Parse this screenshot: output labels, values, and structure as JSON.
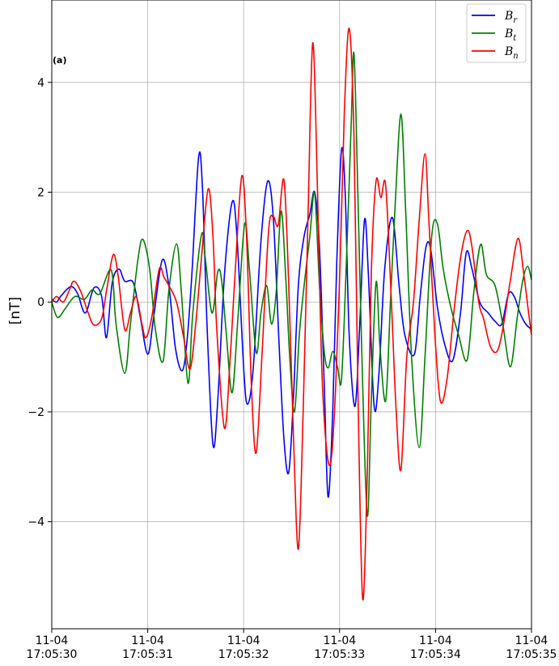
{
  "chart_data": {
    "type": "line",
    "panel_label": "(a)",
    "ylabel": "[nT]",
    "xlabel": "",
    "title": "",
    "xlim_seconds": [
      30,
      35
    ],
    "ylim": [
      -5.95,
      5.5
    ],
    "grid": true,
    "legend_placement": "top-right",
    "x_ticks": [
      {
        "value": 30,
        "date": "11-04",
        "time": "17:05:30"
      },
      {
        "value": 31,
        "date": "11-04",
        "time": "17:05:31"
      },
      {
        "value": 32,
        "date": "11-04",
        "time": "17:05:32"
      },
      {
        "value": 33,
        "date": "11-04",
        "time": "17:05:33"
      },
      {
        "value": 34,
        "date": "11-04",
        "time": "17:05:34"
      },
      {
        "value": 35,
        "date": "11-04",
        "time": "17:05:35"
      }
    ],
    "y_ticks": [
      {
        "value": 4,
        "label": "4"
      },
      {
        "value": 2,
        "label": "2"
      },
      {
        "value": 0,
        "label": "0"
      },
      {
        "value": -2,
        "label": "−2"
      },
      {
        "value": -4,
        "label": "−4"
      }
    ],
    "series": [
      {
        "name": "Br",
        "legend_base": "B",
        "legend_sub": "r",
        "color": "#0000ff",
        "points": [
          [
            30.0,
            0.05
          ],
          [
            30.05,
            0.0
          ],
          [
            30.1,
            0.12
          ],
          [
            30.2,
            0.28
          ],
          [
            30.27,
            0.15
          ],
          [
            30.35,
            -0.2
          ],
          [
            30.44,
            0.26
          ],
          [
            30.52,
            0.1
          ],
          [
            30.57,
            -0.65
          ],
          [
            30.63,
            0.35
          ],
          [
            30.7,
            0.6
          ],
          [
            30.76,
            0.38
          ],
          [
            30.85,
            0.35
          ],
          [
            30.92,
            -0.25
          ],
          [
            31.0,
            -0.95
          ],
          [
            31.06,
            -0.3
          ],
          [
            31.15,
            0.76
          ],
          [
            31.22,
            0.3
          ],
          [
            31.29,
            -0.85
          ],
          [
            31.36,
            -1.25
          ],
          [
            31.41,
            -0.7
          ],
          [
            31.46,
            0.5
          ],
          [
            31.53,
            2.63
          ],
          [
            31.57,
            2.1
          ],
          [
            31.62,
            -0.5
          ],
          [
            31.68,
            -2.6
          ],
          [
            31.73,
            -1.8
          ],
          [
            31.8,
            0.5
          ],
          [
            31.88,
            1.82
          ],
          [
            31.93,
            1.2
          ],
          [
            32.0,
            -1.2
          ],
          [
            32.04,
            -1.86
          ],
          [
            32.1,
            -1.2
          ],
          [
            32.18,
            1.1
          ],
          [
            32.25,
            2.2
          ],
          [
            32.31,
            1.5
          ],
          [
            32.37,
            -0.8
          ],
          [
            32.42,
            -2.5
          ],
          [
            32.47,
            -3.1
          ],
          [
            32.52,
            -1.7
          ],
          [
            32.57,
            0.3
          ],
          [
            32.63,
            1.2
          ],
          [
            32.69,
            1.6
          ],
          [
            32.74,
            2.0
          ],
          [
            32.79,
            1.0
          ],
          [
            32.84,
            -1.5
          ],
          [
            32.88,
            -3.55
          ],
          [
            32.93,
            -1.9
          ],
          [
            32.97,
            0.7
          ],
          [
            33.02,
            2.77
          ],
          [
            33.06,
            1.9
          ],
          [
            33.1,
            -0.6
          ],
          [
            33.16,
            -1.9
          ],
          [
            33.21,
            -0.4
          ],
          [
            33.26,
            1.5
          ],
          [
            33.3,
            0.5
          ],
          [
            33.36,
            -1.9
          ],
          [
            33.41,
            -1.3
          ],
          [
            33.47,
            0.6
          ],
          [
            33.55,
            1.54
          ],
          [
            33.62,
            0.3
          ],
          [
            33.68,
            -0.6
          ],
          [
            33.78,
            -0.95
          ],
          [
            33.84,
            0.1
          ],
          [
            33.9,
            1.0
          ],
          [
            33.95,
            0.95
          ],
          [
            34.02,
            -0.1
          ],
          [
            34.1,
            -0.8
          ],
          [
            34.18,
            -1.06
          ],
          [
            34.26,
            -0.2
          ],
          [
            34.32,
            0.9
          ],
          [
            34.38,
            0.6
          ],
          [
            34.46,
            0.0
          ],
          [
            34.55,
            -0.2
          ],
          [
            34.62,
            -0.35
          ],
          [
            34.69,
            -0.4
          ],
          [
            34.76,
            0.15
          ],
          [
            34.82,
            0.1
          ],
          [
            34.88,
            -0.2
          ],
          [
            34.94,
            -0.4
          ],
          [
            35.0,
            -0.5
          ]
        ]
      },
      {
        "name": "Bt",
        "legend_base": "B",
        "legend_sub": "t",
        "color": "#008000",
        "points": [
          [
            30.0,
            0.0
          ],
          [
            30.06,
            -0.28
          ],
          [
            30.14,
            -0.12
          ],
          [
            30.24,
            0.1
          ],
          [
            30.34,
            0.05
          ],
          [
            30.42,
            0.22
          ],
          [
            30.5,
            0.15
          ],
          [
            30.62,
            0.58
          ],
          [
            30.67,
            -0.4
          ],
          [
            30.76,
            -1.3
          ],
          [
            30.82,
            -0.4
          ],
          [
            30.9,
            0.8
          ],
          [
            30.95,
            1.14
          ],
          [
            31.02,
            0.6
          ],
          [
            31.08,
            -0.5
          ],
          [
            31.16,
            -1.08
          ],
          [
            31.22,
            0.2
          ],
          [
            31.3,
            1.06
          ],
          [
            31.35,
            0.2
          ],
          [
            31.42,
            -1.48
          ],
          [
            31.47,
            -0.2
          ],
          [
            31.56,
            1.22
          ],
          [
            31.6,
            0.8
          ],
          [
            31.67,
            -0.2
          ],
          [
            31.73,
            0.55
          ],
          [
            31.77,
            0.4
          ],
          [
            31.82,
            -0.6
          ],
          [
            31.88,
            -1.65
          ],
          [
            31.94,
            -0.3
          ],
          [
            32.01,
            1.42
          ],
          [
            32.06,
            0.6
          ],
          [
            32.13,
            -0.92
          ],
          [
            32.18,
            -0.2
          ],
          [
            32.24,
            0.3
          ],
          [
            32.29,
            -0.4
          ],
          [
            32.34,
            0.2
          ],
          [
            32.39,
            1.66
          ],
          [
            32.44,
            0.4
          ],
          [
            32.48,
            -1.0
          ],
          [
            32.53,
            -2.0
          ],
          [
            32.58,
            -0.6
          ],
          [
            32.63,
            0.3
          ],
          [
            32.69,
            1.2
          ],
          [
            32.74,
            1.98
          ],
          [
            32.79,
            0.3
          ],
          [
            32.84,
            -0.9
          ],
          [
            32.88,
            -1.2
          ],
          [
            32.93,
            -0.9
          ],
          [
            32.98,
            -1.2
          ],
          [
            33.02,
            -1.4
          ],
          [
            33.07,
            0.7
          ],
          [
            33.12,
            3.2
          ],
          [
            33.15,
            4.52
          ],
          [
            33.19,
            2.0
          ],
          [
            33.24,
            -1.5
          ],
          [
            33.29,
            -3.9
          ],
          [
            33.33,
            -1.8
          ],
          [
            33.38,
            0.36
          ],
          [
            33.42,
            -0.8
          ],
          [
            33.48,
            -1.8
          ],
          [
            33.53,
            0.0
          ],
          [
            33.58,
            1.8
          ],
          [
            33.64,
            3.42
          ],
          [
            33.69,
            1.6
          ],
          [
            33.75,
            -1.0
          ],
          [
            33.83,
            -2.65
          ],
          [
            33.89,
            -1.0
          ],
          [
            33.96,
            1.2
          ],
          [
            34.02,
            1.42
          ],
          [
            34.08,
            0.6
          ],
          [
            34.16,
            -0.1
          ],
          [
            34.24,
            -0.6
          ],
          [
            34.33,
            -1.05
          ],
          [
            34.4,
            0.2
          ],
          [
            34.47,
            1.05
          ],
          [
            34.53,
            0.5
          ],
          [
            34.62,
            0.3
          ],
          [
            34.7,
            -0.4
          ],
          [
            34.78,
            -1.18
          ],
          [
            34.85,
            -0.3
          ],
          [
            34.91,
            0.4
          ],
          [
            34.96,
            0.65
          ],
          [
            35.0,
            0.4
          ]
        ]
      },
      {
        "name": "Bn",
        "legend_base": "B",
        "legend_sub": "n",
        "color": "#ff0000",
        "points": [
          [
            30.0,
            0.0
          ],
          [
            30.05,
            0.1
          ],
          [
            30.12,
            0.0
          ],
          [
            30.18,
            0.2
          ],
          [
            30.23,
            0.38
          ],
          [
            30.3,
            0.2
          ],
          [
            30.38,
            -0.2
          ],
          [
            30.44,
            -0.42
          ],
          [
            30.52,
            -0.3
          ],
          [
            30.57,
            0.2
          ],
          [
            30.64,
            0.86
          ],
          [
            30.69,
            0.5
          ],
          [
            30.76,
            -0.5
          ],
          [
            30.82,
            -0.2
          ],
          [
            30.88,
            0.1
          ],
          [
            30.94,
            -0.4
          ],
          [
            30.98,
            -0.65
          ],
          [
            31.04,
            -0.3
          ],
          [
            31.12,
            0.6
          ],
          [
            31.17,
            0.45
          ],
          [
            31.22,
            0.3
          ],
          [
            31.3,
            0.0
          ],
          [
            31.37,
            -0.6
          ],
          [
            31.44,
            -1.22
          ],
          [
            31.5,
            -0.4
          ],
          [
            31.56,
            0.8
          ],
          [
            31.63,
            2.06
          ],
          [
            31.68,
            1.2
          ],
          [
            31.72,
            -0.5
          ],
          [
            31.8,
            -2.3
          ],
          [
            31.86,
            -1.0
          ],
          [
            31.91,
            0.5
          ],
          [
            31.98,
            2.29
          ],
          [
            32.03,
            1.2
          ],
          [
            32.08,
            -1.5
          ],
          [
            32.13,
            -2.75
          ],
          [
            32.19,
            -1.0
          ],
          [
            32.26,
            1.3
          ],
          [
            32.31,
            1.55
          ],
          [
            32.36,
            1.4
          ],
          [
            32.42,
            2.22
          ],
          [
            32.47,
            0.3
          ],
          [
            32.52,
            -2.5
          ],
          [
            32.57,
            -4.5
          ],
          [
            32.62,
            -2.0
          ],
          [
            32.67,
            1.5
          ],
          [
            32.72,
            4.72
          ],
          [
            32.77,
            2.0
          ],
          [
            32.81,
            -1.0
          ],
          [
            32.86,
            -2.6
          ],
          [
            32.91,
            -2.9
          ],
          [
            32.96,
            -1.5
          ],
          [
            33.01,
            1.0
          ],
          [
            33.05,
            3.5
          ],
          [
            33.1,
            4.98
          ],
          [
            33.15,
            3.0
          ],
          [
            33.19,
            -1.5
          ],
          [
            33.24,
            -5.4
          ],
          [
            33.29,
            -3.0
          ],
          [
            33.33,
            0.5
          ],
          [
            33.38,
            2.2
          ],
          [
            33.43,
            1.9
          ],
          [
            33.48,
            2.12
          ],
          [
            33.54,
            0.0
          ],
          [
            33.59,
            -2.0
          ],
          [
            33.64,
            -3.05
          ],
          [
            33.7,
            -1.0
          ],
          [
            33.77,
            0.0
          ],
          [
            33.83,
            1.5
          ],
          [
            33.89,
            2.7
          ],
          [
            33.93,
            1.5
          ],
          [
            33.99,
            -0.5
          ],
          [
            34.05,
            -1.8
          ],
          [
            34.12,
            -1.4
          ],
          [
            34.19,
            -0.2
          ],
          [
            34.26,
            0.8
          ],
          [
            34.33,
            1.3
          ],
          [
            34.38,
            1.0
          ],
          [
            34.45,
            0.0
          ],
          [
            34.5,
            -0.3
          ],
          [
            34.57,
            -0.8
          ],
          [
            34.64,
            -0.9
          ],
          [
            34.7,
            -0.5
          ],
          [
            34.78,
            0.4
          ],
          [
            34.86,
            1.16
          ],
          [
            34.92,
            0.5
          ],
          [
            34.97,
            -0.2
          ],
          [
            35.0,
            -0.6
          ]
        ]
      }
    ]
  }
}
